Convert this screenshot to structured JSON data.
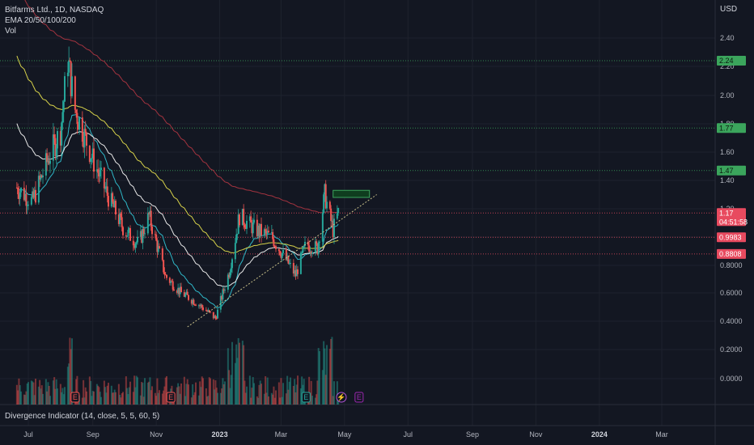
{
  "header": {
    "symbol": "Bitfarms Ltd., 1D, NASDAQ",
    "ema_label": "EMA 20/50/100/200",
    "vol_label": "Vol",
    "currency": "USD"
  },
  "indicator_pane": {
    "label": "Divergence Indicator (14, close, 5, 5, 60, 5)"
  },
  "colors": {
    "background": "#131722",
    "grid": "#1e222d",
    "up": "#26a69a",
    "down": "#ef5350",
    "ema20": "#2fb7c7",
    "ema50": "#e8e8e8",
    "ema100": "#d7d24a",
    "ema200": "#a3333f",
    "green_level": "#3ba55c",
    "red_level": "#e84a5f"
  },
  "chart_data": {
    "type": "candlestick",
    "x_ticks": [
      {
        "label": "Jul",
        "date": "2022-07-01"
      },
      {
        "label": "Sep",
        "date": "2022-09-01"
      },
      {
        "label": "Nov",
        "date": "2022-11-01"
      },
      {
        "label": "2023",
        "date": "2023-01-01",
        "bold": true
      },
      {
        "label": "Mar",
        "date": "2023-03-01"
      },
      {
        "label": "May",
        "date": "2023-05-01"
      },
      {
        "label": "Jul",
        "date": "2023-07-01"
      },
      {
        "label": "Sep",
        "date": "2023-09-01"
      },
      {
        "label": "Nov",
        "date": "2023-11-01"
      },
      {
        "label": "2024",
        "date": "2024-01-01",
        "bold": true
      },
      {
        "label": "Mar",
        "date": "2024-03-01"
      }
    ],
    "y_ticks": [
      "2.40",
      "2.20",
      "2.00",
      "1.80",
      "1.60",
      "1.40",
      "1.20",
      "1.00",
      "0.8000",
      "0.6000",
      "0.4000",
      "0.2000",
      "0.0000"
    ],
    "y_scale": "log-like (price axis)",
    "price_badges": [
      {
        "value": "2.24",
        "type": "green"
      },
      {
        "value": "1.77",
        "type": "green"
      },
      {
        "value": "1.47",
        "type": "green"
      },
      {
        "value": "1.17",
        "type": "red",
        "countdown": "04:51:58"
      },
      {
        "value": "0.9983",
        "type": "red"
      },
      {
        "value": "0.8808",
        "type": "red"
      }
    ],
    "candles_path": [
      {
        "date": "2022-06-20",
        "close": 1.35
      },
      {
        "date": "2022-07-05",
        "close": 1.25
      },
      {
        "date": "2022-07-20",
        "close": 1.55
      },
      {
        "date": "2022-08-01",
        "close": 1.75
      },
      {
        "date": "2022-08-08",
        "close": 2.25
      },
      {
        "date": "2022-08-15",
        "close": 1.9
      },
      {
        "date": "2022-09-01",
        "close": 1.55
      },
      {
        "date": "2022-09-15",
        "close": 1.3
      },
      {
        "date": "2022-10-01",
        "close": 1.05
      },
      {
        "date": "2022-10-15",
        "close": 0.95
      },
      {
        "date": "2022-10-25",
        "close": 1.15
      },
      {
        "date": "2022-11-10",
        "close": 0.72
      },
      {
        "date": "2022-11-25",
        "close": 0.6
      },
      {
        "date": "2022-12-10",
        "close": 0.53
      },
      {
        "date": "2022-12-28",
        "close": 0.42
      },
      {
        "date": "2023-01-10",
        "close": 0.75
      },
      {
        "date": "2023-01-20",
        "close": 1.15
      },
      {
        "date": "2023-02-05",
        "close": 1.05
      },
      {
        "date": "2023-02-20",
        "close": 1.0
      },
      {
        "date": "2023-03-05",
        "close": 0.85
      },
      {
        "date": "2023-03-15",
        "close": 0.73
      },
      {
        "date": "2023-03-25",
        "close": 0.95
      },
      {
        "date": "2023-04-05",
        "close": 0.92
      },
      {
        "date": "2023-04-12",
        "close": 1.3
      },
      {
        "date": "2023-04-20",
        "close": 1.05
      },
      {
        "date": "2023-04-25",
        "close": 1.17
      }
    ],
    "annotations": {
      "target_box": {
        "date_start": "2023-04-20",
        "date_end": "2023-05-25",
        "price_low": 1.28,
        "price_high": 1.33
      },
      "trendline": {
        "start": {
          "date": "2022-12-01",
          "price": 0.36
        },
        "end": {
          "date": "2023-06-01",
          "price": 1.3
        }
      },
      "earnings_markers": [
        {
          "date": "2022-08-15",
          "label": "E"
        },
        {
          "date": "2022-11-15",
          "label": "E"
        },
        {
          "date": "2023-03-25",
          "label": "E"
        },
        {
          "date": "2023-05-15",
          "label": "E"
        }
      ],
      "split_marker": {
        "date": "2023-04-28",
        "label": "⚡"
      }
    }
  }
}
